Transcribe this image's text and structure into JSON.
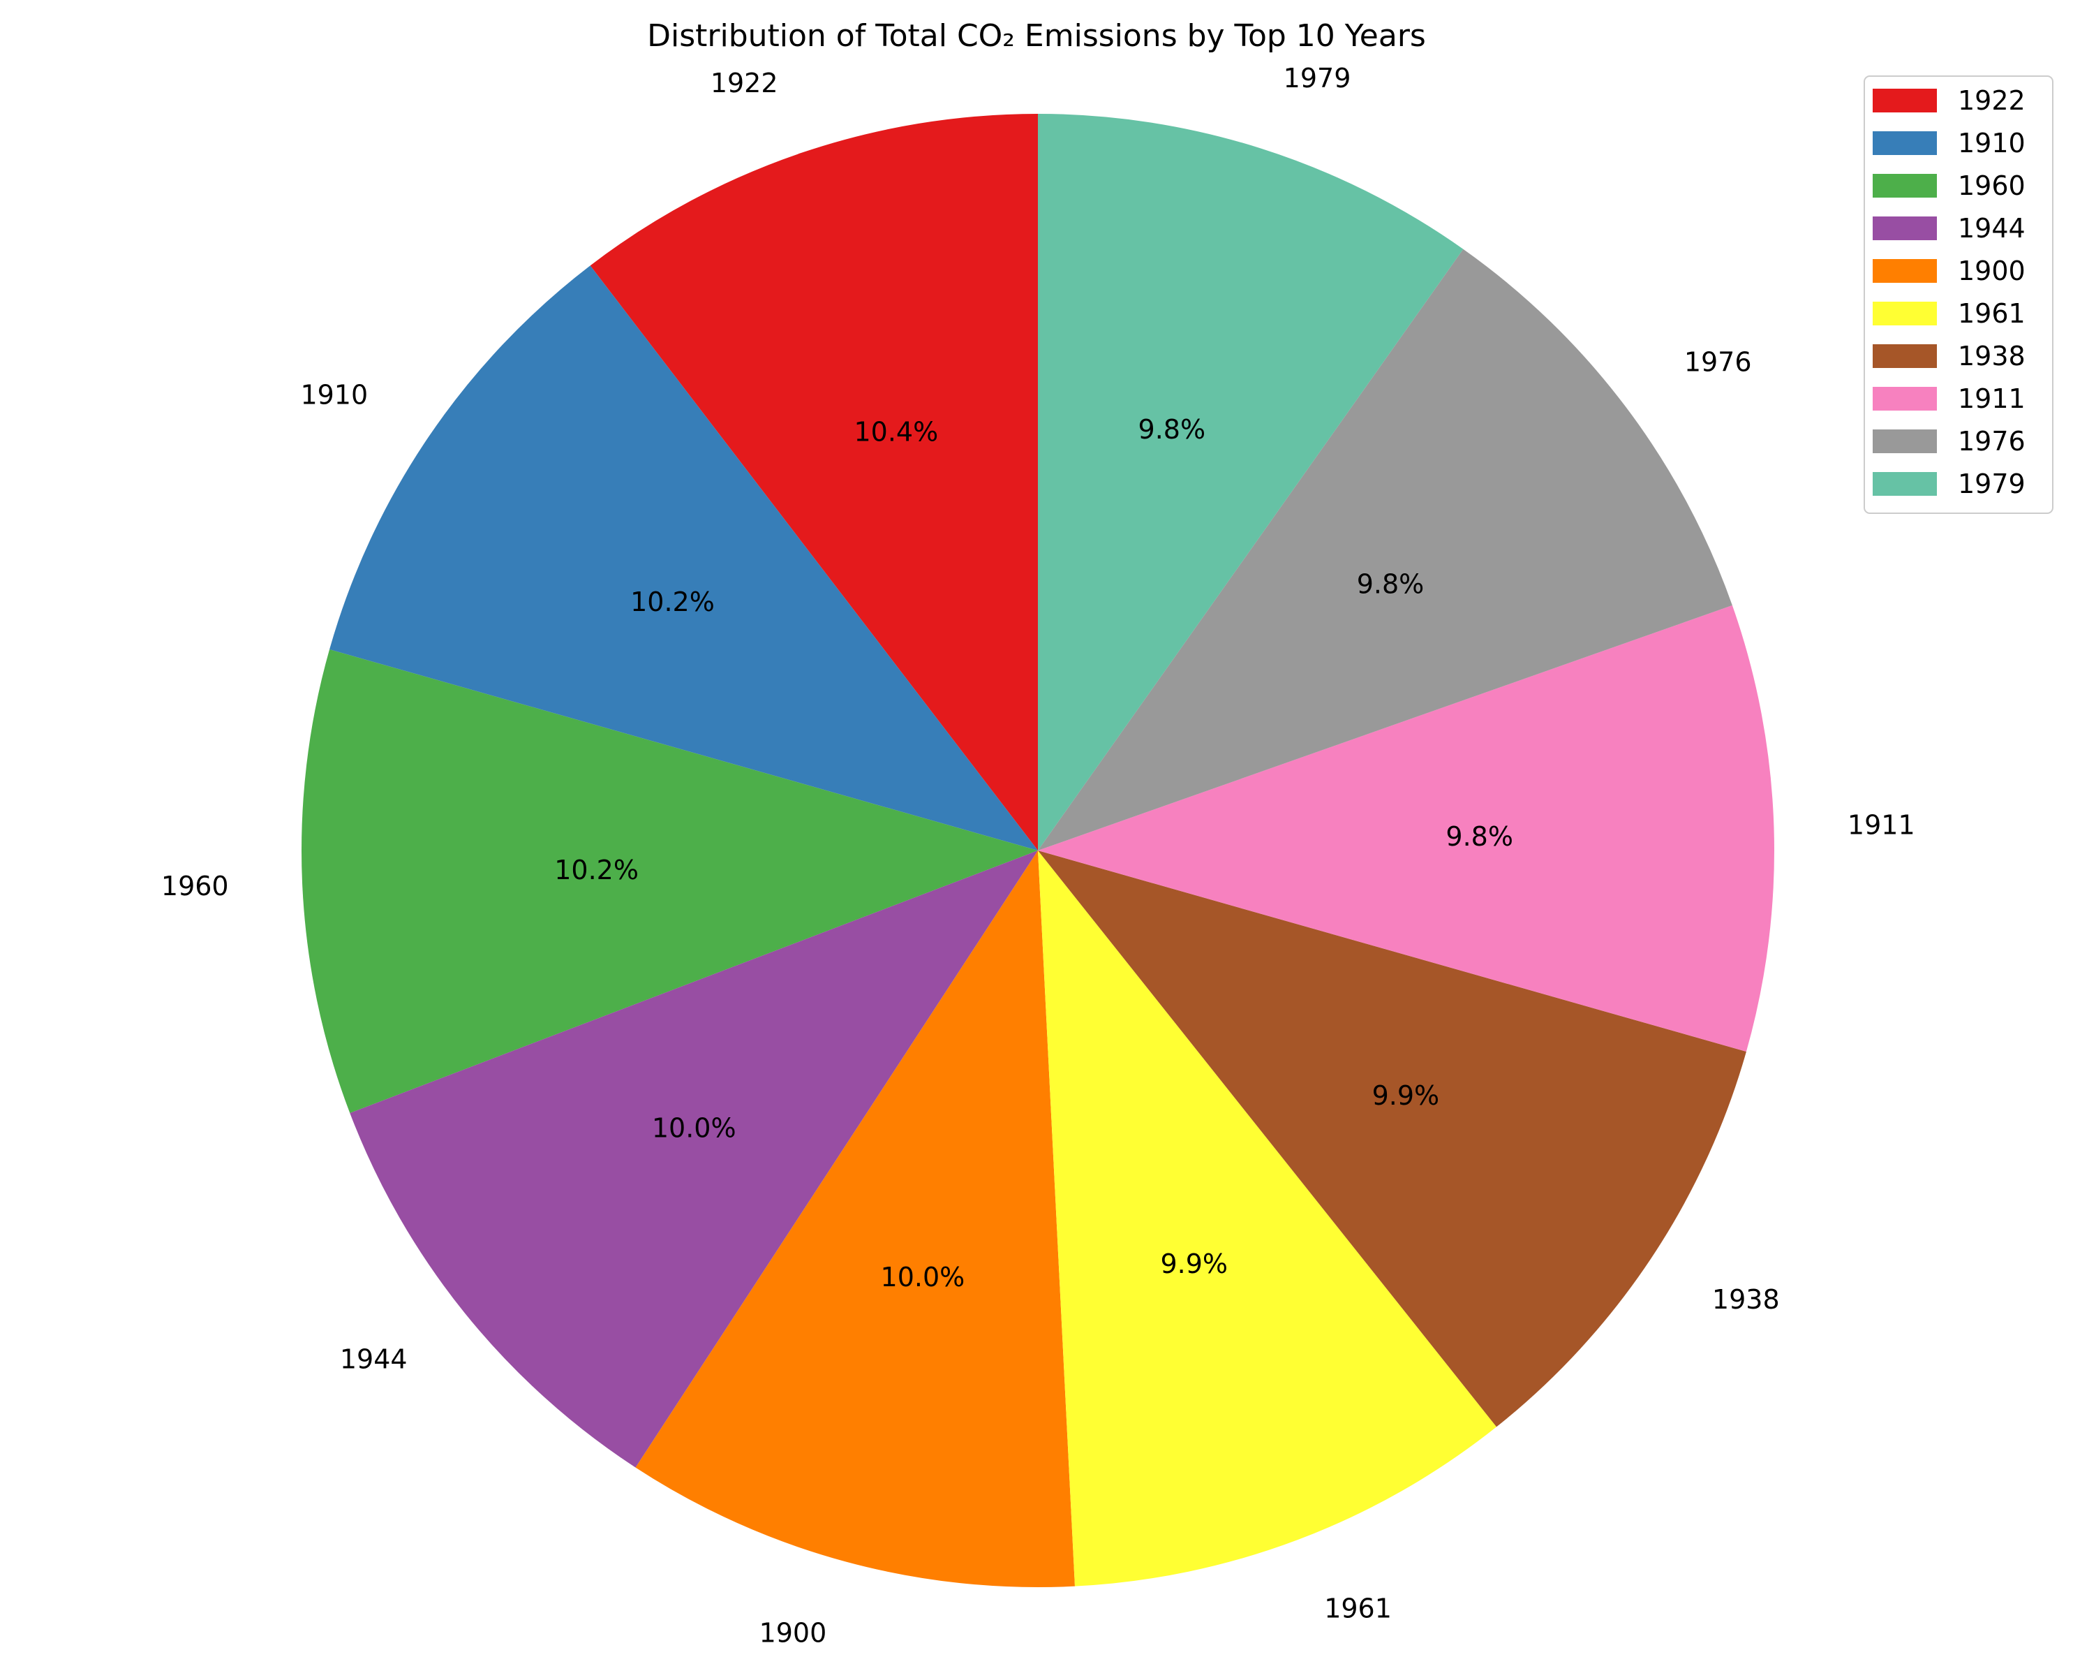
{
  "chart_data": {
    "type": "pie",
    "title": "Distribution of Total CO₂ Emissions by Top 10 Years",
    "labels": [
      "1922",
      "1910",
      "1960",
      "1944",
      "1900",
      "1961",
      "1938",
      "1911",
      "1976",
      "1979"
    ],
    "values": [
      10.4,
      10.2,
      10.2,
      10.0,
      10.0,
      9.9,
      9.9,
      9.8,
      9.8,
      9.8
    ],
    "value_labels": [
      "10.4%",
      "10.2%",
      "10.2%",
      "10.0%",
      "10.0%",
      "9.9%",
      "9.9%",
      "9.8%",
      "9.8%",
      "9.8%"
    ],
    "colors": [
      "#e41a1c",
      "#377eb8",
      "#4daf4a",
      "#984ea3",
      "#ff7f00",
      "#ffff33",
      "#a65628",
      "#f781bf",
      "#999999",
      "#66c2a5"
    ],
    "start_angle": 90,
    "direction": "counterclockwise",
    "legend": {
      "position": "top-right",
      "entries": [
        "1922",
        "1910",
        "1960",
        "1944",
        "1900",
        "1961",
        "1938",
        "1911",
        "1976",
        "1979"
      ]
    }
  }
}
